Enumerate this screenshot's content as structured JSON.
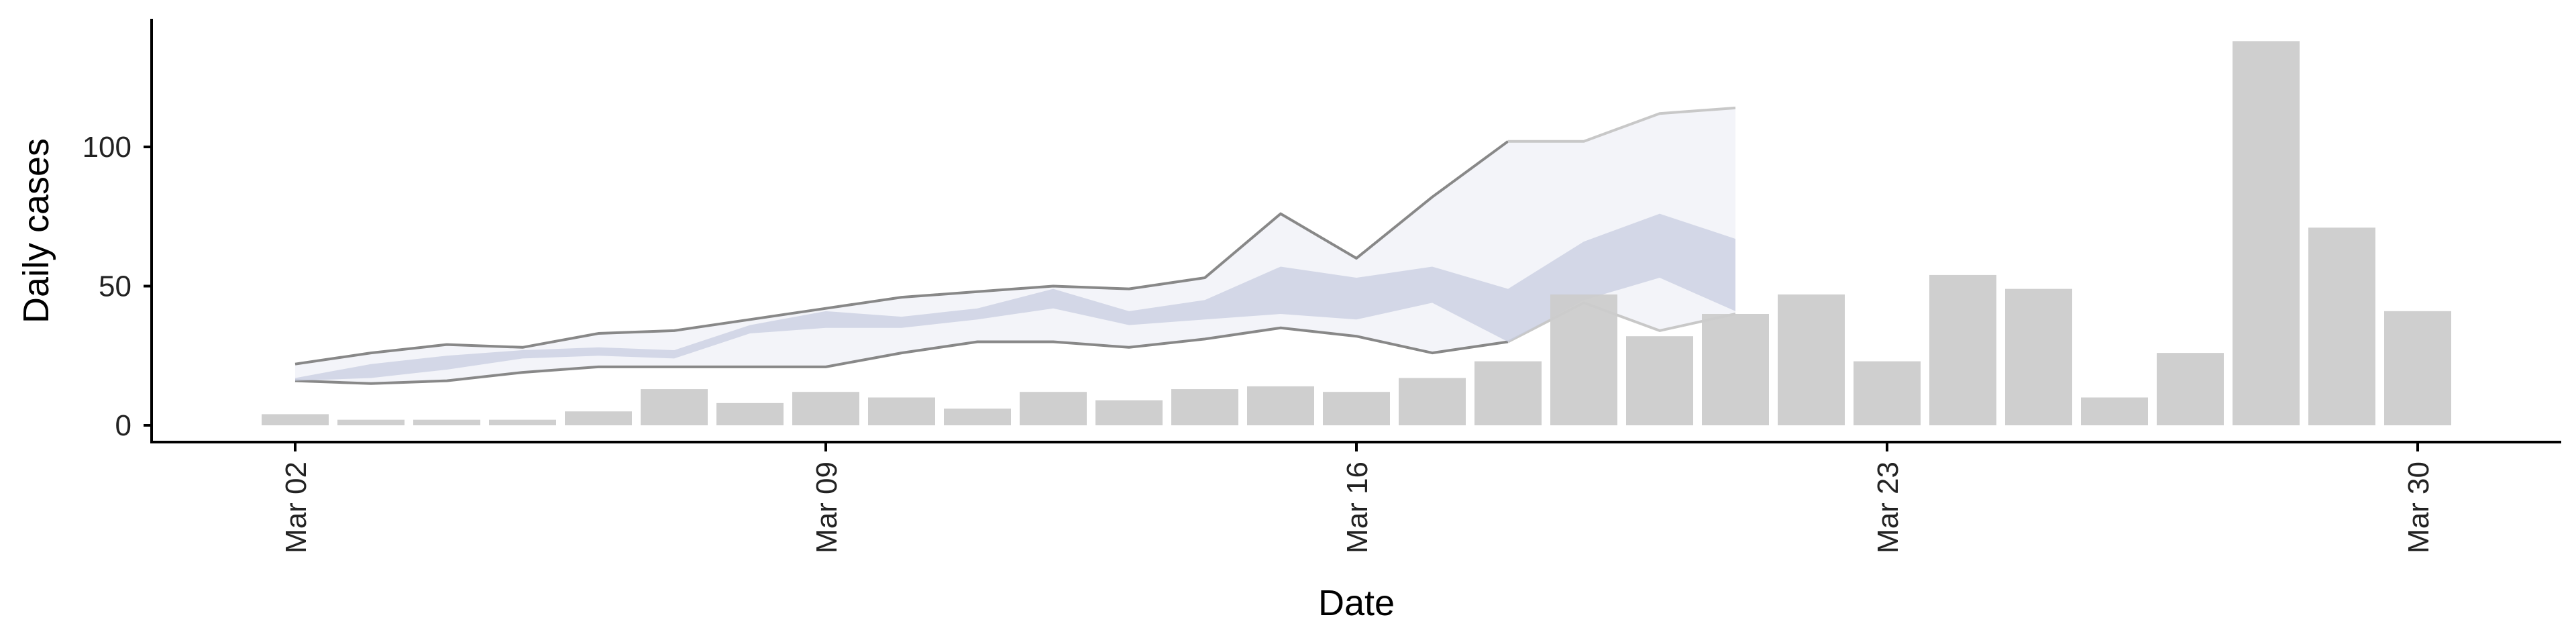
{
  "chart_data": {
    "type": "bar",
    "xlabel": "Date",
    "ylabel": "Daily cases",
    "ylim": [
      -6,
      143
    ],
    "yticks": [
      0,
      50,
      100
    ],
    "x_start_date": "2020-03-02",
    "x_tick_labels": [
      "Mar 02",
      "Mar 09",
      "Mar 16",
      "Mar 23",
      "Mar 30"
    ],
    "x_tick_dates": [
      "2020-03-02",
      "2020-03-09",
      "2020-03-16",
      "2020-03-23",
      "2020-03-30"
    ],
    "grid": false,
    "legend": "none",
    "bars": {
      "name": "Daily cases",
      "color": "#cccccc",
      "dates": [
        "2020-03-02",
        "2020-03-03",
        "2020-03-04",
        "2020-03-05",
        "2020-03-06",
        "2020-03-07",
        "2020-03-08",
        "2020-03-09",
        "2020-03-10",
        "2020-03-11",
        "2020-03-12",
        "2020-03-13",
        "2020-03-14",
        "2020-03-15",
        "2020-03-16",
        "2020-03-17",
        "2020-03-18",
        "2020-03-19",
        "2020-03-20",
        "2020-03-21",
        "2020-03-22",
        "2020-03-23",
        "2020-03-24",
        "2020-03-25",
        "2020-03-26",
        "2020-03-27",
        "2020-03-28",
        "2020-03-29",
        "2020-03-30"
      ],
      "values": [
        4,
        2,
        2,
        2,
        5,
        13,
        8,
        12,
        10,
        6,
        12,
        9,
        13,
        14,
        12,
        17,
        23,
        47,
        32,
        40,
        47,
        23,
        54,
        49,
        10,
        26,
        138,
        71,
        41
      ]
    },
    "bands": [
      {
        "name": "outer",
        "stroke": "#888888",
        "fill": "#eef0f6",
        "dates": [
          "2020-03-02",
          "2020-03-03",
          "2020-03-04",
          "2020-03-05",
          "2020-03-06",
          "2020-03-07",
          "2020-03-08",
          "2020-03-09",
          "2020-03-10",
          "2020-03-11",
          "2020-03-12",
          "2020-03-13",
          "2020-03-14",
          "2020-03-15",
          "2020-03-16",
          "2020-03-17",
          "2020-03-18",
          "2020-03-19",
          "2020-03-20",
          "2020-03-21"
        ],
        "upper": [
          22,
          26,
          29,
          28,
          33,
          34,
          38,
          42,
          46,
          48,
          50,
          49,
          53,
          76,
          60,
          82,
          102,
          102,
          112,
          114
        ],
        "lower": [
          16,
          15,
          16,
          19,
          21,
          21,
          21,
          21,
          26,
          30,
          30,
          28,
          31,
          35,
          32,
          26,
          30,
          44,
          34,
          40
        ]
      },
      {
        "name": "inner",
        "stroke": "none",
        "fill": "#c8cde0",
        "dates": [
          "2020-03-02",
          "2020-03-03",
          "2020-03-04",
          "2020-03-05",
          "2020-03-06",
          "2020-03-07",
          "2020-03-08",
          "2020-03-09",
          "2020-03-10",
          "2020-03-11",
          "2020-03-12",
          "2020-03-13",
          "2020-03-14",
          "2020-03-15",
          "2020-03-16",
          "2020-03-17",
          "2020-03-18",
          "2020-03-19",
          "2020-03-20",
          "2020-03-21"
        ],
        "upper": [
          17,
          22,
          25,
          27,
          28,
          27,
          36,
          41,
          39,
          42,
          49,
          41,
          45,
          57,
          53,
          57,
          49,
          66,
          76,
          67
        ],
        "lower": [
          16,
          17,
          20,
          24,
          25,
          24,
          33,
          35,
          35,
          38,
          42,
          36,
          38,
          40,
          38,
          44,
          30,
          45,
          53,
          41
        ]
      }
    ]
  }
}
